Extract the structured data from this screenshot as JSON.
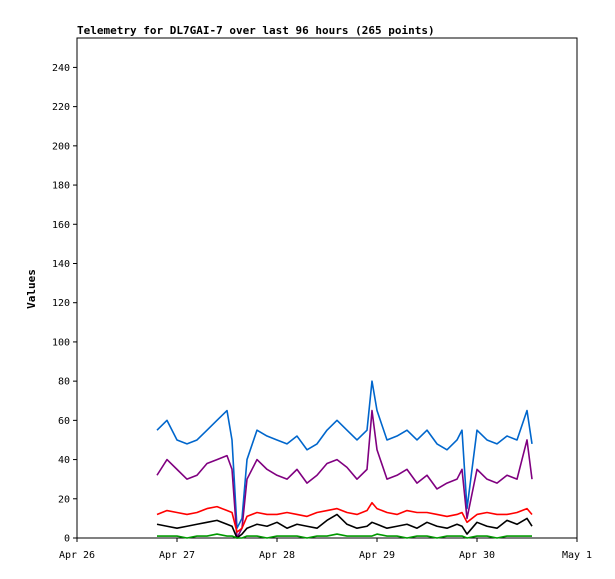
{
  "chart_data": {
    "type": "line",
    "title": "Telemetry for DL7GAI-7 over last 96 hours (265 points)",
    "xlabel": "",
    "ylabel": "Values",
    "ylim": [
      0,
      255
    ],
    "xlim": [
      0,
      5
    ],
    "x_ticks": [
      0,
      1,
      2,
      3,
      4,
      5
    ],
    "x_tick_labels": [
      "Apr 26",
      "Apr 27",
      "Apr 28",
      "Apr 29",
      "Apr 30",
      "May 1"
    ],
    "y_ticks": [
      0,
      20,
      40,
      60,
      80,
      100,
      120,
      140,
      160,
      180,
      200,
      220,
      240
    ],
    "y_tick_labels": [
      "0",
      "20",
      "40",
      "60",
      "80",
      "100",
      "120",
      "140",
      "160",
      "180",
      "200",
      "220",
      "240"
    ],
    "grid": false,
    "legend": "none",
    "x": [
      0.8,
      0.9,
      1.0,
      1.1,
      1.2,
      1.3,
      1.4,
      1.5,
      1.55,
      1.6,
      1.65,
      1.7,
      1.8,
      1.9,
      2.0,
      2.1,
      2.2,
      2.3,
      2.4,
      2.5,
      2.6,
      2.7,
      2.8,
      2.9,
      2.95,
      3.0,
      3.1,
      3.2,
      3.3,
      3.4,
      3.5,
      3.6,
      3.7,
      3.8,
      3.85,
      3.9,
      4.0,
      4.1,
      4.2,
      4.3,
      4.4,
      4.5,
      4.55
    ],
    "series": [
      {
        "color": "#0066cc",
        "values": [
          55,
          60,
          50,
          48,
          50,
          55,
          60,
          65,
          50,
          5,
          10,
          40,
          55,
          52,
          50,
          48,
          52,
          45,
          48,
          55,
          60,
          55,
          50,
          55,
          80,
          65,
          50,
          52,
          55,
          50,
          55,
          48,
          45,
          50,
          55,
          15,
          55,
          50,
          48,
          52,
          50,
          65,
          48
        ]
      },
      {
        "color": "#800080",
        "values": [
          32,
          40,
          35,
          30,
          32,
          38,
          40,
          42,
          35,
          0,
          5,
          30,
          40,
          35,
          32,
          30,
          35,
          28,
          32,
          38,
          40,
          36,
          30,
          35,
          65,
          45,
          30,
          32,
          35,
          28,
          32,
          25,
          28,
          30,
          35,
          10,
          35,
          30,
          28,
          32,
          30,
          50,
          30
        ]
      },
      {
        "color": "#ff0000",
        "values": [
          12,
          14,
          13,
          12,
          13,
          15,
          16,
          14,
          13,
          3,
          5,
          11,
          13,
          12,
          12,
          13,
          12,
          11,
          13,
          14,
          15,
          13,
          12,
          14,
          18,
          15,
          13,
          12,
          14,
          13,
          13,
          12,
          11,
          12,
          13,
          8,
          12,
          13,
          12,
          12,
          13,
          15,
          12
        ]
      },
      {
        "color": "#000000",
        "values": [
          7,
          6,
          5,
          6,
          7,
          8,
          9,
          7,
          6,
          0,
          2,
          5,
          7,
          6,
          8,
          5,
          7,
          6,
          5,
          9,
          12,
          7,
          5,
          6,
          8,
          7,
          5,
          6,
          7,
          5,
          8,
          6,
          5,
          7,
          6,
          2,
          8,
          6,
          5,
          9,
          7,
          10,
          6
        ]
      },
      {
        "color": "#009900",
        "values": [
          1,
          1,
          1,
          0,
          1,
          1,
          2,
          1,
          1,
          0,
          0,
          1,
          1,
          0,
          1,
          1,
          1,
          0,
          1,
          1,
          2,
          1,
          1,
          1,
          1,
          2,
          1,
          1,
          0,
          1,
          1,
          0,
          1,
          1,
          1,
          0,
          1,
          1,
          0,
          1,
          1,
          1,
          1
        ]
      }
    ]
  }
}
